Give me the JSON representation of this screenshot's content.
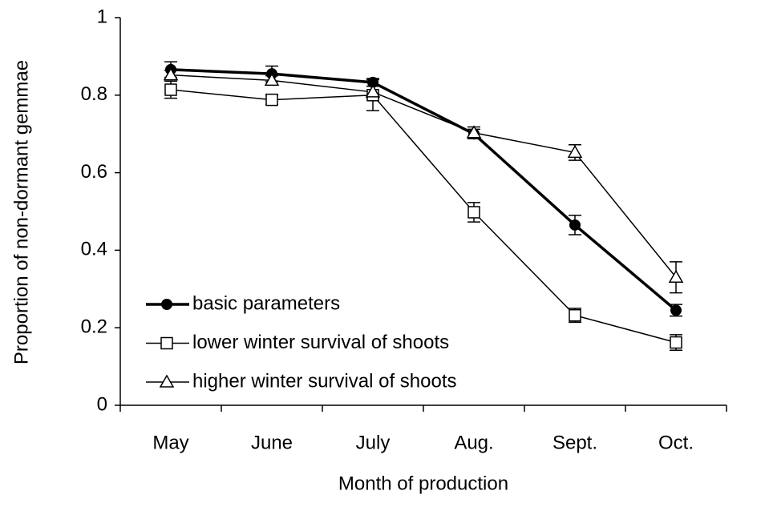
{
  "chart_data": {
    "type": "line",
    "x_label": "Month of production",
    "y_label": "Proportion of non-dormant gemmae",
    "categories": [
      "May",
      "June",
      "July",
      "Aug.",
      "Sept.",
      "Oct."
    ],
    "ylim": [
      0,
      1
    ],
    "yticks": [
      0,
      0.2,
      0.4,
      0.6,
      0.8,
      1
    ],
    "legend": "lower-left",
    "series": [
      {
        "name": "basic parameters",
        "color": "#000000",
        "marker": "circle",
        "values": [
          0.866,
          0.855,
          0.833,
          0.7,
          0.465,
          0.245
        ],
        "errors": [
          0.02,
          0.02,
          0.01,
          0.012,
          0.025,
          0.015
        ]
      },
      {
        "name": "lower winter survival of shoots",
        "color": "#000000",
        "marker": "square",
        "values": [
          0.814,
          0.788,
          0.8,
          0.498,
          0.232,
          0.162
        ],
        "errors": [
          0.022,
          0.012,
          0.04,
          0.025,
          0.018,
          0.02
        ]
      },
      {
        "name": "higher winter survival of shoots",
        "color": "#000000",
        "marker": "triangle",
        "values": [
          0.852,
          0.838,
          0.808,
          0.703,
          0.652,
          0.33
        ],
        "errors": [
          0.012,
          0.012,
          0.015,
          0.015,
          0.02,
          0.04
        ]
      }
    ]
  }
}
